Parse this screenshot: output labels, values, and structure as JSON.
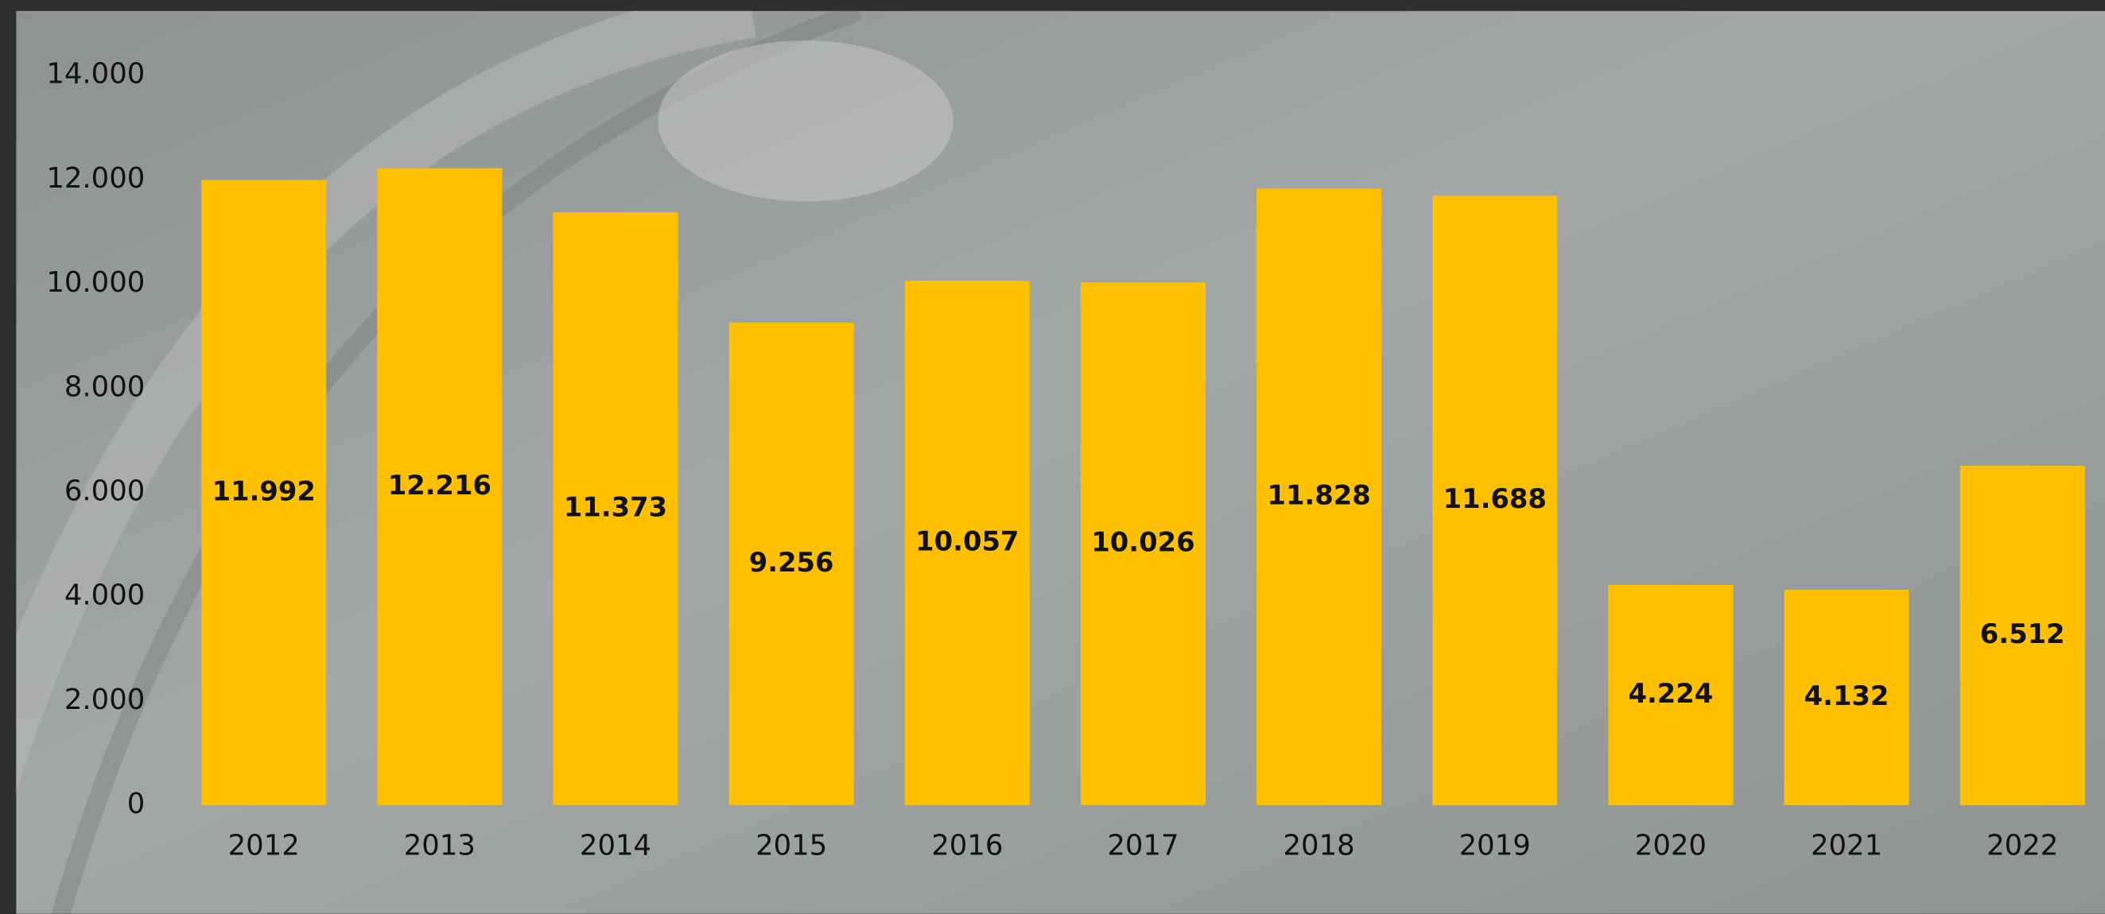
{
  "chart_data": {
    "type": "bar",
    "categories": [
      "2012",
      "2013",
      "2014",
      "2015",
      "2016",
      "2017",
      "2018",
      "2019",
      "2020",
      "2021",
      "2022"
    ],
    "values": [
      11992,
      12216,
      11373,
      9256,
      10057,
      10026,
      11828,
      11688,
      4224,
      4132,
      6512
    ],
    "value_labels": [
      "11.992",
      "12.216",
      "11.373",
      "9.256",
      "10.057",
      "10.026",
      "11.828",
      "11.688",
      "4.224",
      "4.132",
      "6.512"
    ],
    "color": "#ffc000",
    "ylim": [
      0,
      14000
    ],
    "yticks": [
      0,
      {
        "value": 2000,
        "label": "2.000"
      },
      {
        "value": 4000,
        "label": "4.000"
      },
      {
        "value": 6000,
        "label": "6.000"
      },
      {
        "value": 8000,
        "label": "8.000"
      },
      {
        "value": 10000,
        "label": "10.000"
      },
      {
        "value": 12000,
        "label": "12.000"
      },
      {
        "value": 14000,
        "label": "14.000"
      }
    ],
    "grid": false
  }
}
